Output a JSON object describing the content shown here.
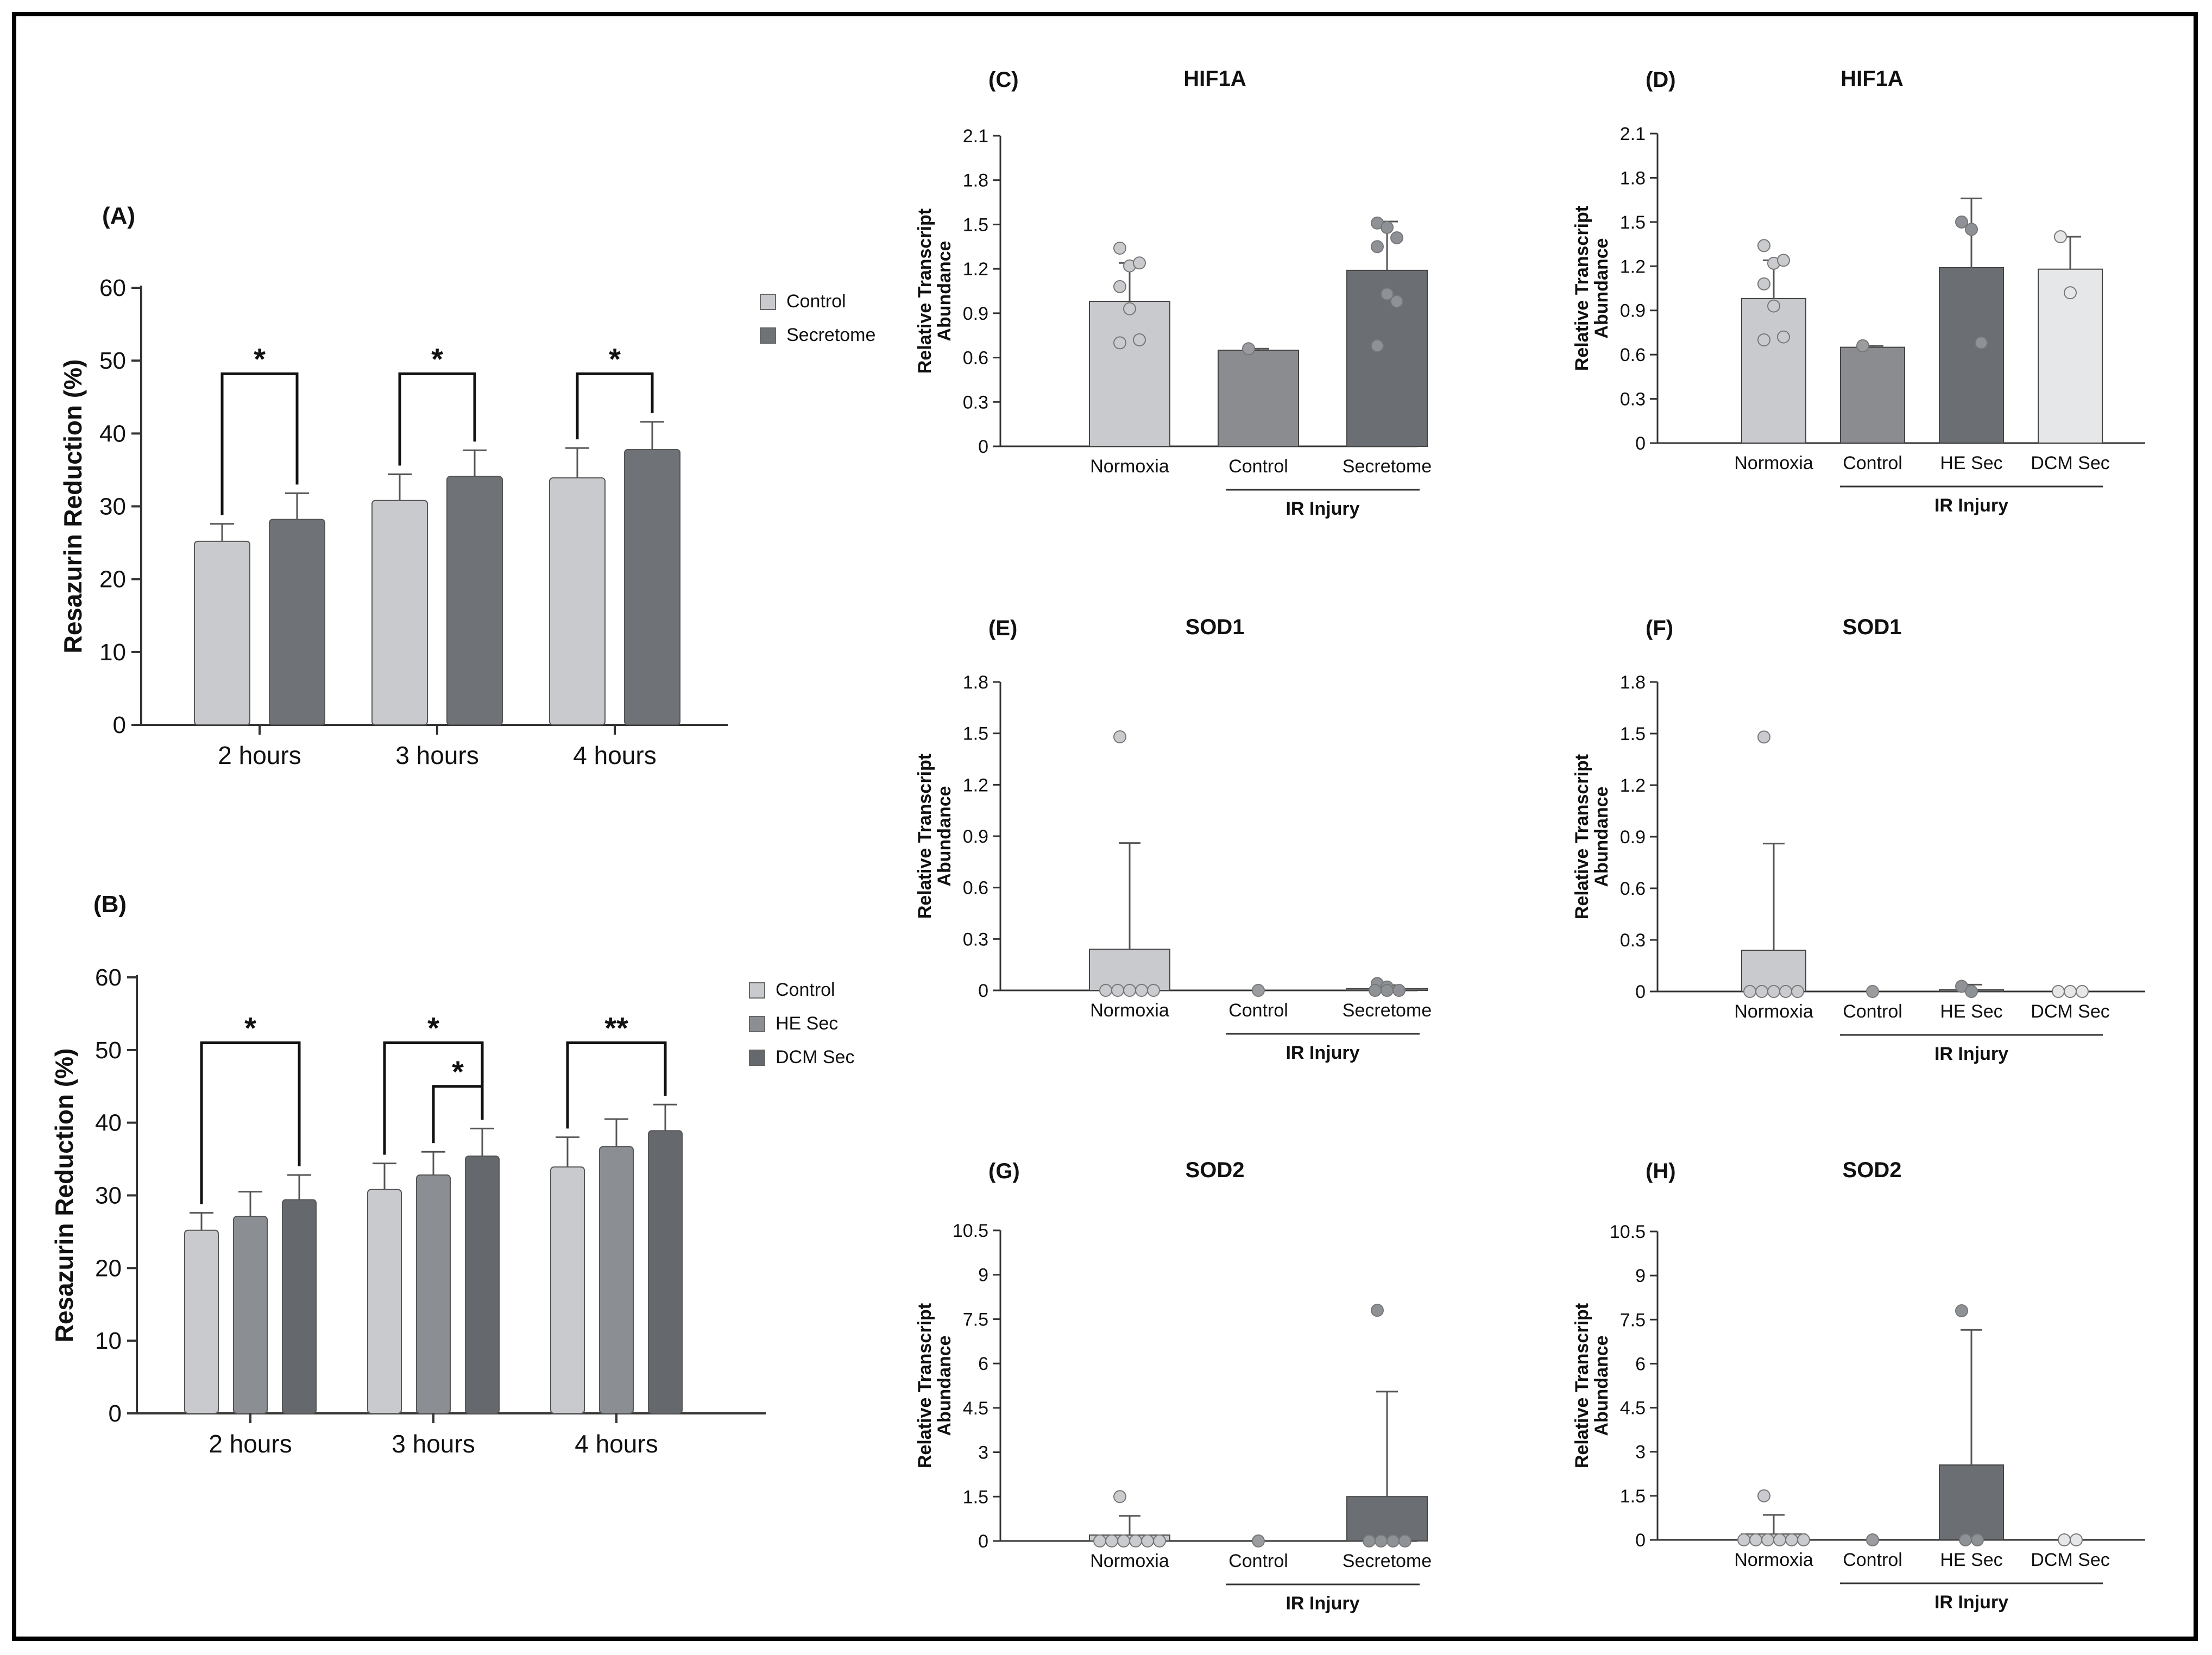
{
  "colors": {
    "control": "#c8cacd",
    "secretome": "#6f7276",
    "he_sec": "#8b8e93",
    "dcm_sec": "#65686c",
    "normoxia": "#c8cacd",
    "ir_control": "#8a8c90",
    "ir_secretome": "#6b6e72",
    "ir_he_sec": "#6b6e72",
    "ir_dcm_sec": "#e6e7e8",
    "axis": "#333333"
  },
  "chart_data": [
    {
      "id": "A",
      "panel_label": "(A)",
      "type": "bar",
      "title": "",
      "xlabel": "",
      "ylabel": "Resazurin Reduction (%)",
      "ylim": [
        0,
        60
      ],
      "yticks": [
        "0",
        "10",
        "20",
        "30",
        "40",
        "50",
        "60"
      ],
      "categories": [
        "2 hours",
        "3 hours",
        "4 hours"
      ],
      "series": [
        {
          "name": "Control",
          "values": [
            25.2,
            30.8,
            33.9
          ],
          "errors": [
            2.4,
            3.6,
            4.1
          ]
        },
        {
          "name": "Secretome",
          "values": [
            28.2,
            34.1,
            37.8
          ],
          "errors": [
            3.6,
            3.6,
            3.8
          ]
        }
      ],
      "legend": [
        "Control",
        "Secretome"
      ],
      "significance": [
        {
          "group": 0,
          "from": 0,
          "to": 1,
          "label": "*"
        },
        {
          "group": 1,
          "from": 0,
          "to": 1,
          "label": "*"
        },
        {
          "group": 2,
          "from": 0,
          "to": 1,
          "label": "*"
        }
      ]
    },
    {
      "id": "B",
      "panel_label": "(B)",
      "type": "bar",
      "title": "",
      "xlabel": "",
      "ylabel": "Resazurin Reduction (%)",
      "ylim": [
        0,
        60
      ],
      "yticks": [
        "0",
        "10",
        "20",
        "30",
        "40",
        "50",
        "60"
      ],
      "categories": [
        "2 hours",
        "3 hours",
        "4 hours"
      ],
      "series": [
        {
          "name": "Control",
          "values": [
            25.2,
            30.8,
            33.9
          ],
          "errors": [
            2.4,
            3.6,
            4.1
          ]
        },
        {
          "name": "HE Sec",
          "values": [
            27.1,
            32.8,
            36.7
          ],
          "errors": [
            3.4,
            3.2,
            3.8
          ]
        },
        {
          "name": "DCM Sec",
          "values": [
            29.4,
            35.4,
            38.9
          ],
          "errors": [
            3.4,
            3.8,
            3.6
          ]
        }
      ],
      "legend": [
        "Control",
        "HE Sec",
        "DCM Sec"
      ],
      "significance": [
        {
          "group": 0,
          "from": 0,
          "to": 2,
          "label": "*"
        },
        {
          "group": 1,
          "from": 0,
          "to": 2,
          "label": "*"
        },
        {
          "group": 1,
          "from": 1,
          "to": 2,
          "label": "*"
        },
        {
          "group": 2,
          "from": 0,
          "to": 2,
          "label": "**"
        }
      ]
    },
    {
      "id": "C",
      "panel_label": "(C)",
      "type": "bar",
      "title": "HIF1A",
      "ylabel": "Relative Transcript Abundance",
      "ylim": [
        0,
        2.1
      ],
      "yticks": [
        "0",
        "0.3",
        "0.6",
        "0.9",
        "1.2",
        "1.5",
        "1.8",
        "2.1"
      ],
      "categories": [
        "Normoxia",
        "Control",
        "Secretome"
      ],
      "values": [
        0.98,
        0.65,
        1.19
      ],
      "errors": [
        0.26,
        0.01,
        0.33
      ],
      "points": [
        [
          1.34,
          1.22,
          1.24,
          1.08,
          0.93,
          0.72,
          0.7
        ],
        [
          0.66
        ],
        [
          1.51,
          1.48,
          1.41,
          1.35,
          1.03,
          0.98,
          0.68
        ]
      ],
      "group_label": "IR Injury",
      "group_range": [
        1,
        2
      ]
    },
    {
      "id": "D",
      "panel_label": "(D)",
      "type": "bar",
      "title": "HIF1A",
      "ylabel": "Relative Transcript Abundance",
      "ylim": [
        0,
        2.1
      ],
      "yticks": [
        "0",
        "0.3",
        "0.6",
        "0.9",
        "1.2",
        "1.5",
        "1.8",
        "2.1"
      ],
      "categories": [
        "Normoxia",
        "Control",
        "HE Sec",
        "DCM Sec"
      ],
      "values": [
        0.98,
        0.65,
        1.19,
        1.18
      ],
      "errors": [
        0.26,
        0.01,
        0.47,
        0.22
      ],
      "points": [
        [
          1.34,
          1.22,
          1.24,
          1.08,
          0.93,
          0.72,
          0.7
        ],
        [
          0.66
        ],
        [
          1.5,
          1.45,
          0.68
        ],
        [
          1.4,
          1.02
        ]
      ],
      "group_label": "IR Injury",
      "group_range": [
        1,
        3
      ]
    },
    {
      "id": "E",
      "panel_label": "(E)",
      "type": "bar",
      "title": "SOD1",
      "ylabel": "Relative Transcript Abundance",
      "ylim": [
        0,
        1.8
      ],
      "yticks": [
        "0",
        "0.3",
        "0.6",
        "0.9",
        "1.2",
        "1.5",
        "1.8"
      ],
      "categories": [
        "Normoxia",
        "Control",
        "Secretome"
      ],
      "values": [
        0.24,
        0.0,
        0.01
      ],
      "errors": [
        0.62,
        0.0,
        0.02
      ],
      "points": [
        [
          1.48,
          0,
          0,
          0,
          0,
          0
        ],
        [
          0
        ],
        [
          0.04,
          0.02,
          0,
          0,
          0
        ]
      ],
      "group_label": "IR Injury",
      "group_range": [
        1,
        2
      ]
    },
    {
      "id": "F",
      "panel_label": "(F)",
      "type": "bar",
      "title": "SOD1",
      "ylabel": "Relative Transcript Abundance",
      "ylim": [
        0,
        1.8
      ],
      "yticks": [
        "0",
        "0.3",
        "0.6",
        "0.9",
        "1.2",
        "1.5",
        "1.8"
      ],
      "categories": [
        "Normoxia",
        "Control",
        "HE Sec",
        "DCM Sec"
      ],
      "values": [
        0.24,
        0.0,
        0.01,
        0.0
      ],
      "errors": [
        0.62,
        0.0,
        0.03,
        0.0
      ],
      "points": [
        [
          1.48,
          0,
          0,
          0,
          0,
          0
        ],
        [
          0
        ],
        [
          0.03,
          0
        ],
        [
          0,
          0,
          0
        ]
      ],
      "group_label": "IR Injury",
      "group_range": [
        1,
        3
      ]
    },
    {
      "id": "G",
      "panel_label": "(G)",
      "type": "bar",
      "title": "SOD2",
      "ylabel": "Relative Transcript Abundance",
      "ylim": [
        0,
        10.5
      ],
      "yticks": [
        "0",
        "1.5",
        "3",
        "4.5",
        "6",
        "7.5",
        "9",
        "10.5"
      ],
      "categories": [
        "Normoxia",
        "Control",
        "Secretome"
      ],
      "values": [
        0.2,
        0.0,
        1.5
      ],
      "errors": [
        0.65,
        0.0,
        3.55
      ],
      "points": [
        [
          1.5,
          0,
          0,
          0,
          0,
          0,
          0
        ],
        [
          0
        ],
        [
          7.8,
          0,
          0,
          0,
          0
        ]
      ],
      "group_label": "IR Injury",
      "group_range": [
        1,
        2
      ]
    },
    {
      "id": "H",
      "panel_label": "(H)",
      "type": "bar",
      "title": "SOD2",
      "ylabel": "Relative Transcript Abundance",
      "ylim": [
        0,
        10.5
      ],
      "yticks": [
        "0",
        "1.5",
        "3",
        "4.5",
        "6",
        "7.5",
        "9",
        "10.5"
      ],
      "categories": [
        "Normoxia",
        "Control",
        "HE Sec",
        "DCM Sec"
      ],
      "values": [
        0.2,
        0.0,
        2.55,
        0.0
      ],
      "errors": [
        0.65,
        0.0,
        4.6,
        0.0
      ],
      "points": [
        [
          1.5,
          0,
          0,
          0,
          0,
          0,
          0
        ],
        [
          0
        ],
        [
          7.8,
          0,
          0
        ],
        [
          0,
          0
        ]
      ],
      "group_label": "IR Injury",
      "group_range": [
        1,
        3
      ]
    }
  ]
}
